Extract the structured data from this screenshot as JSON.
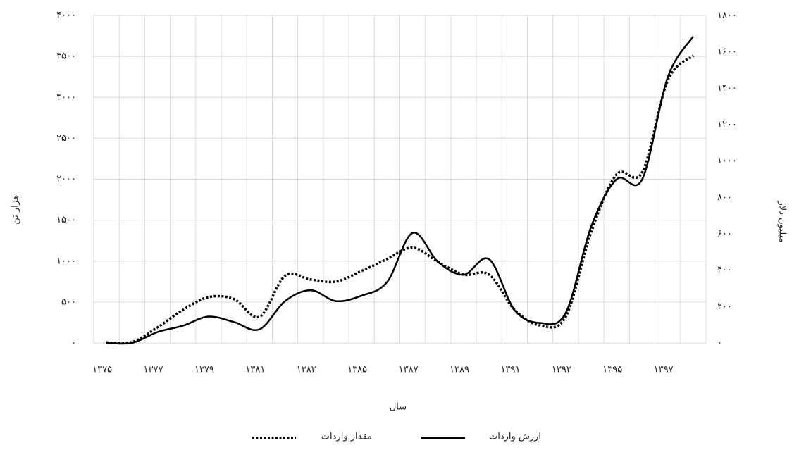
{
  "chart_data": {
    "type": "line",
    "x_label": "سال",
    "y_label": "هزار تن",
    "y2_label": "میلیون دلار",
    "categories": [
      "۱۳۷۵",
      null,
      "۱۳۷۷",
      null,
      "۱۳۷۹",
      null,
      "۱۳۸۱",
      null,
      "۱۳۸۳",
      null,
      "۱۳۸۵",
      null,
      "۱۳۸۷",
      null,
      "۱۳۸۹",
      null,
      "۱۳۹۱",
      null,
      "۱۳۹۳",
      null,
      "۱۳۹۵",
      null,
      "۱۳۹۷",
      null
    ],
    "series": [
      {
        "name": "مقدار واردات",
        "color": "#000000",
        "line_style": "dotted",
        "values": [
          5,
          10,
          190,
          405,
          560,
          535,
          320,
          820,
          775,
          750,
          880,
          1025,
          1165,
          990,
          835,
          835,
          405,
          215,
          320,
          1355,
          2060,
          2085,
          3205,
          3510
        ]
      },
      {
        "name": "ارزش واردات",
        "color": "#000000",
        "line_style": "solid",
        "axis": "y2",
        "values": [
          2,
          0,
          60,
          95,
          145,
          115,
          75,
          230,
          290,
          230,
          260,
          335,
          605,
          445,
          375,
          460,
          180,
          110,
          165,
          640,
          900,
          900,
          1460,
          1685
        ]
      }
    ],
    "ylim": [
      0,
      4000
    ],
    "yticks": [
      {
        "value": 0,
        "label": "۰"
      },
      {
        "value": 500,
        "label": "۵۰۰"
      },
      {
        "value": 1000,
        "label": "۱۰۰۰"
      },
      {
        "value": 1500,
        "label": "۱۵۰۰"
      },
      {
        "value": 2000,
        "label": "۲۰۰۰"
      },
      {
        "value": 2500,
        "label": "۲۵۰۰"
      },
      {
        "value": 3000,
        "label": "۳۰۰۰"
      },
      {
        "value": 3500,
        "label": "۳۵۰۰"
      },
      {
        "value": 4000,
        "label": "۴۰۰۰"
      }
    ],
    "y2lim": [
      0,
      1800
    ],
    "y2ticks": [
      {
        "value": 0,
        "label": "۰"
      },
      {
        "value": 200,
        "label": "۲۰۰"
      },
      {
        "value": 400,
        "label": "۴۰۰"
      },
      {
        "value": 600,
        "label": "۶۰۰"
      },
      {
        "value": 800,
        "label": "۸۰۰"
      },
      {
        "value": 1000,
        "label": "۱۰۰۰"
      },
      {
        "value": 1200,
        "label": "۱۲۰۰"
      },
      {
        "value": 1400,
        "label": "۱۴۰۰"
      },
      {
        "value": 1600,
        "label": "۱۶۰۰"
      },
      {
        "value": 1800,
        "label": "۱۸۰۰"
      }
    ],
    "grid": true
  }
}
